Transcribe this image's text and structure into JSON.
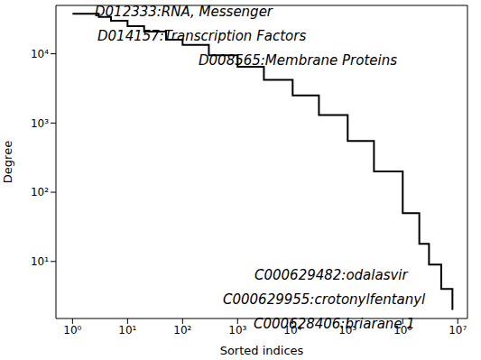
{
  "chart_data": {
    "type": "line",
    "xlabel": "Sorted indices",
    "ylabel": "Degree",
    "log": true,
    "grid": false,
    "line_style": "step",
    "series": [
      {
        "name": "Degree",
        "color": "#000000",
        "x": [
          1,
          2,
          3,
          5,
          10,
          20,
          50,
          100,
          300,
          1000,
          3000,
          10000,
          30000,
          100000,
          300000,
          1000000,
          2000000,
          3000000,
          5000000,
          8000000
        ],
        "values": [
          38000,
          38000,
          34000,
          30000,
          25000,
          21000,
          16000,
          13500,
          9500,
          6500,
          4200,
          2500,
          1300,
          550,
          200,
          50,
          18,
          9,
          4,
          2
        ]
      }
    ],
    "xlim": [
      0.5,
      15000000
    ],
    "ylim": [
      1.5,
      50000
    ],
    "xticks": [
      {
        "value": 1,
        "label": "10⁰"
      },
      {
        "value": 10,
        "label": "10¹"
      },
      {
        "value": 100,
        "label": "10²"
      },
      {
        "value": 1000,
        "label": "10³"
      },
      {
        "value": 10000,
        "label": "10⁴"
      },
      {
        "value": 100000,
        "label": "10⁵"
      },
      {
        "value": 1000000,
        "label": "10⁶"
      },
      {
        "value": 10000000,
        "label": "10⁷"
      }
    ],
    "yticks": [
      {
        "value": 10,
        "label": "10¹"
      },
      {
        "value": 100,
        "label": "10²"
      },
      {
        "value": 1000,
        "label": "10³"
      },
      {
        "value": 10000,
        "label": "10⁴"
      }
    ],
    "annotations": [
      "D012333:RNA, Messenger",
      "D014157:Transcription Factors",
      "D008565:Membrane Proteins",
      "C000629482:odalasvir",
      "C000629955:crotonylfentanyl",
      "C000628406:briarane 1"
    ]
  }
}
